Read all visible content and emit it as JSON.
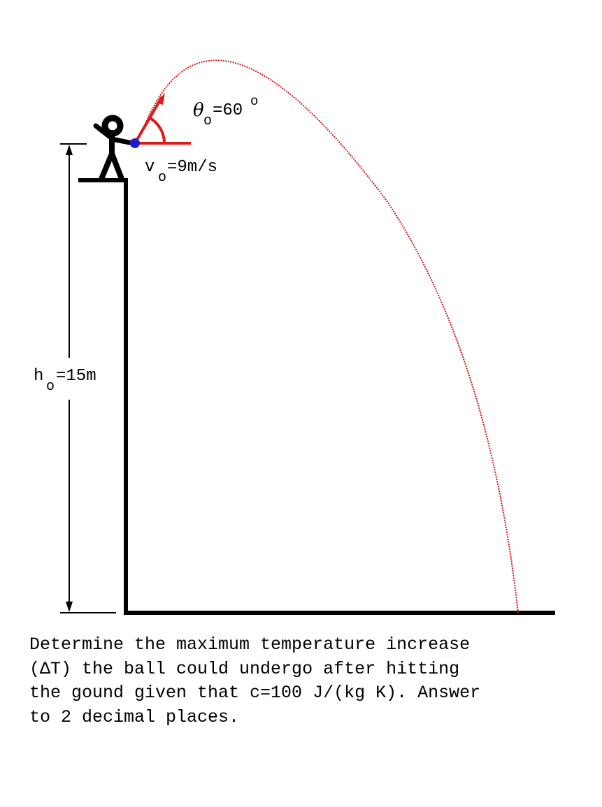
{
  "labels": {
    "theta_symbol": "θ",
    "subscript": "o",
    "theta_value": "=60",
    "degree_symbol": "o",
    "v_symbol": "v",
    "v_value": "=9m/s",
    "h_symbol": "h",
    "h_value": "=15m"
  },
  "problem": {
    "lines": [
      "Determine the maximum temperature increase",
      "(ΔT) the ball could undergo after hitting",
      "the gound given that c=100 J/(kg K). Answer",
      "to 2 decimal places."
    ]
  },
  "colors": {
    "structure": "#000000",
    "launch_markers": "#e0191b",
    "trajectory": "#d21a1a",
    "ball": "#1c1ccc",
    "text": "#000000"
  }
}
